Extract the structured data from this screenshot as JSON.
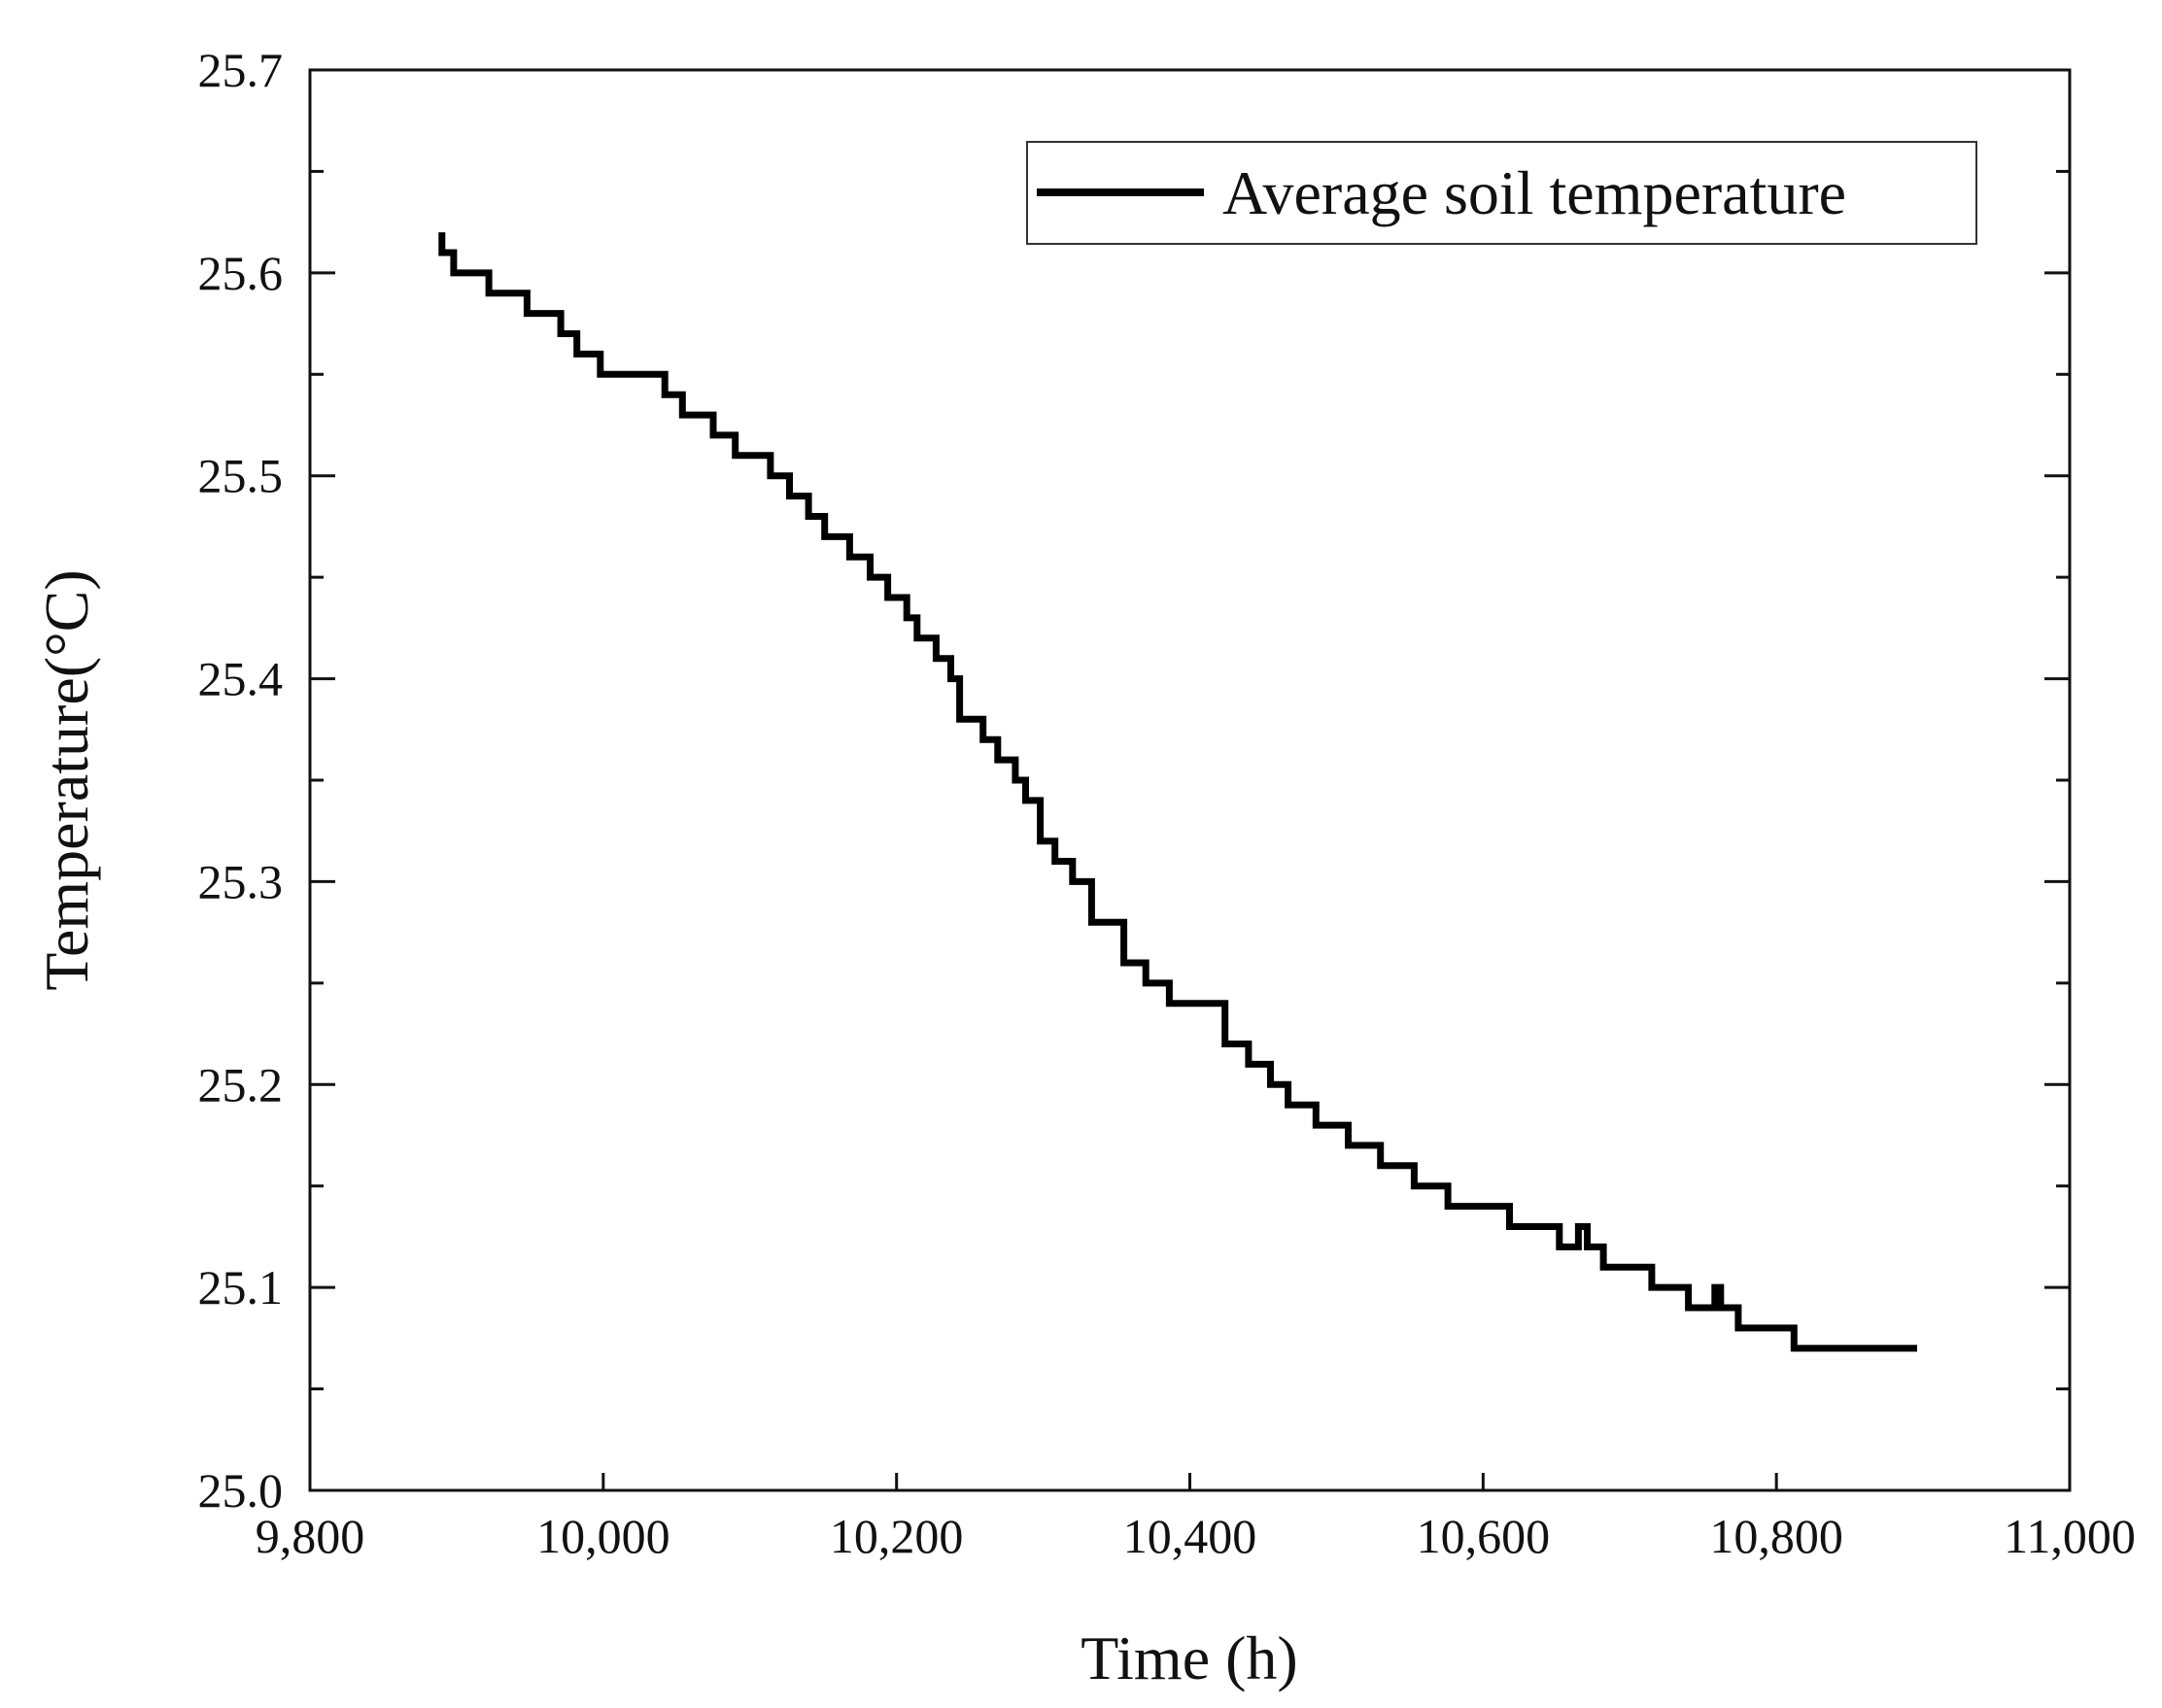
{
  "chart_data": {
    "type": "line",
    "title": "",
    "xlabel": "Time (h)",
    "ylabel": "Temperature(°C)",
    "xlim": [
      9800,
      11000
    ],
    "ylim": [
      25.0,
      25.7
    ],
    "x_ticks": [
      9800,
      10000,
      10200,
      10400,
      10600,
      10800,
      11000
    ],
    "x_tick_labels": [
      "9,800",
      "10,000",
      "10,200",
      "10,400",
      "10,600",
      "10,800",
      "11,000"
    ],
    "y_ticks": [
      25.0,
      25.1,
      25.2,
      25.3,
      25.4,
      25.5,
      25.6,
      25.7
    ],
    "y_tick_labels": [
      "25.0",
      "25.1",
      "25.2",
      "25.3",
      "25.4",
      "25.5",
      "25.6",
      "25.7"
    ],
    "y_minor_step": 0.05,
    "grid": false,
    "legend_position": "top-right",
    "line_color": "#000000",
    "series": [
      {
        "name": "Average soil temperature",
        "step": true,
        "x": [
          9890,
          9898,
          9922,
          9948,
          9971,
          9982,
          9998,
          10042,
          10054,
          10075,
          10090,
          10114,
          10127,
          10140,
          10151,
          10168,
          10182,
          10194,
          10207,
          10214,
          10227,
          10237,
          10243,
          10259,
          10269,
          10281,
          10288,
          10298,
          10308,
          10320,
          10333,
          10355,
          10370,
          10386,
          10424,
          10440,
          10455,
          10467,
          10486,
          10508,
          10530,
          10553,
          10576,
          10618,
          10652,
          10665,
          10671,
          10675,
          10682,
          10715,
          10740,
          10758,
          10762,
          10770,
          10774,
          10812,
          10837,
          10896
        ],
        "y": [
          25.62,
          25.61,
          25.6,
          25.59,
          25.58,
          25.57,
          25.56,
          25.55,
          25.54,
          25.53,
          25.52,
          25.51,
          25.5,
          25.49,
          25.48,
          25.47,
          25.46,
          25.45,
          25.44,
          25.43,
          25.42,
          25.41,
          25.4,
          25.38,
          25.37,
          25.36,
          25.35,
          25.34,
          25.32,
          25.31,
          25.3,
          25.28,
          25.26,
          25.25,
          25.24,
          25.22,
          25.21,
          25.2,
          25.19,
          25.18,
          25.17,
          25.16,
          25.15,
          25.14,
          25.13,
          25.12,
          25.13,
          25.12,
          25.12,
          25.11,
          25.1,
          25.09,
          25.1,
          25.09,
          25.09,
          25.08,
          25.07,
          25.07
        ]
      }
    ]
  }
}
